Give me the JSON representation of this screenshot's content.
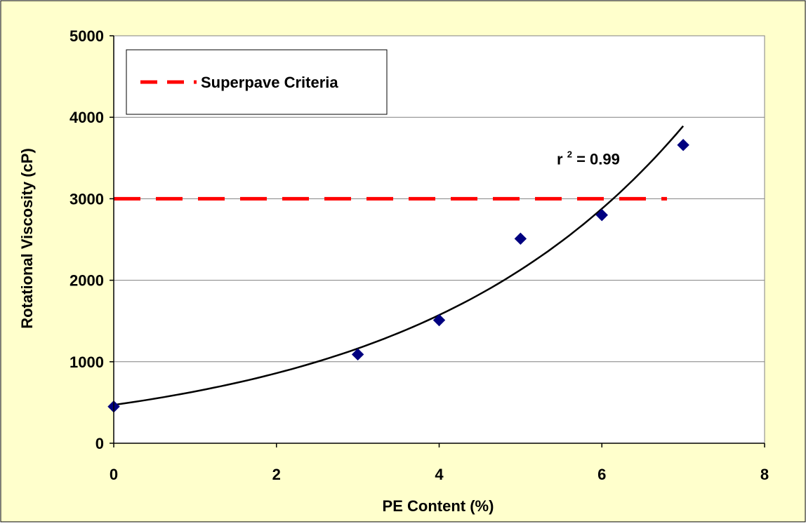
{
  "colors": {
    "chart_area": "#FFFFCC",
    "plot_area": "#FFFFFF",
    "marker": "#000080",
    "criteria_line": "#FF0000",
    "trendline": "#000000",
    "gridline": "#808080"
  },
  "chart_data": {
    "type": "scatter",
    "xlabel": "PE Content (%)",
    "ylabel": "Rotational Viscosity (cP)",
    "xlim": [
      0,
      8
    ],
    "ylim": [
      0,
      5000
    ],
    "x_ticks": [
      0,
      2,
      4,
      6,
      8
    ],
    "y_ticks": [
      0,
      1000,
      2000,
      3000,
      4000,
      5000
    ],
    "grid": "horizontal",
    "legend_position": "top-left",
    "series": [
      {
        "type": "scatter",
        "marker": "diamond",
        "x": [
          0,
          3,
          4,
          5,
          6,
          7
        ],
        "y": [
          450,
          1090,
          1510,
          2510,
          2800,
          3660
        ]
      },
      {
        "type": "trendline",
        "fit": "exponential",
        "a": 470,
        "b": 0.302,
        "x_range": [
          0,
          7
        ]
      },
      {
        "name": "Superpave Criteria",
        "type": "reference_line",
        "style": "dashed",
        "y": 3000,
        "x_range": [
          0,
          6.8
        ]
      }
    ],
    "annotations": [
      {
        "base": "r",
        "superscript": "2",
        "text": " = 0.99",
        "x": 6.05,
        "y": 3560
      }
    ]
  }
}
